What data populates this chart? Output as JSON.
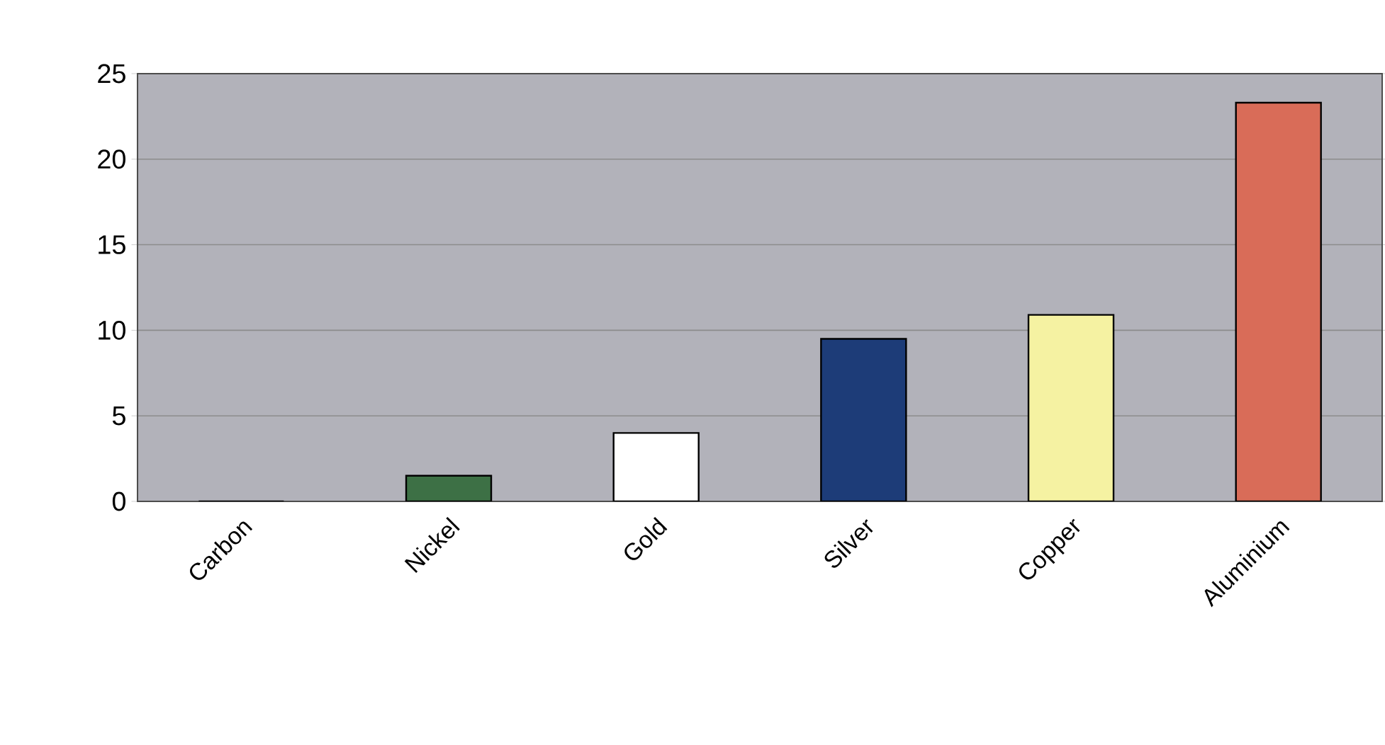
{
  "chart_data": {
    "type": "bar",
    "categories": [
      "Carbon",
      "Nickel",
      "Gold",
      "Silver",
      "Copper",
      "Aluminium"
    ],
    "values": [
      0,
      1.5,
      4.0,
      9.5,
      10.9,
      23.3
    ],
    "colors": [
      "#808080",
      "#3d7045",
      "#ffffff",
      "#1d3c78",
      "#f5f2a2",
      "#d96c58"
    ],
    "ylim": [
      0,
      25
    ],
    "yticks": [
      0,
      5,
      10,
      15,
      20,
      25
    ],
    "grid": "y"
  }
}
